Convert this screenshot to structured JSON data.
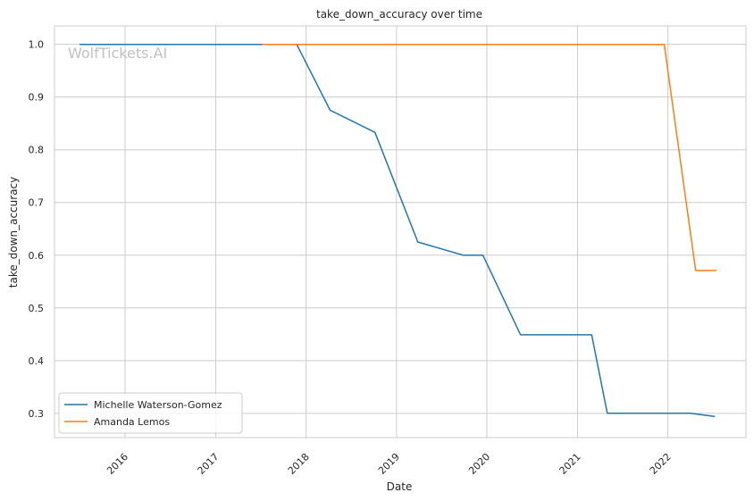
{
  "chart_data": {
    "type": "line",
    "title": "take_down_accuracy over time",
    "xlabel": "Date",
    "ylabel": "take_down_accuracy",
    "watermark": "WolfTickets.AI",
    "x_ticks": [
      "2016",
      "2017",
      "2018",
      "2019",
      "2020",
      "2021",
      "2022"
    ],
    "y_ticks": [
      "0.3",
      "0.4",
      "0.5",
      "0.6",
      "0.7",
      "0.8",
      "0.9",
      "1.0"
    ],
    "xlim": [
      "2015-03-22",
      "2022-11-12"
    ],
    "ylim": [
      0.254,
      1.035
    ],
    "grid": true,
    "legend_position": "lower-left",
    "series": [
      {
        "name": "Michelle Waterson-Gomez",
        "color": "#1f77b4",
        "points": [
          [
            "2015-07-01",
            1.0
          ],
          [
            "2017-11-24",
            1.0
          ],
          [
            "2018-04-08",
            0.875
          ],
          [
            "2018-10-06",
            0.833
          ],
          [
            "2019-03-28",
            0.625
          ],
          [
            "2019-09-28",
            0.6
          ],
          [
            "2019-12-16",
            0.6
          ],
          [
            "2020-05-16",
            0.449
          ],
          [
            "2021-02-27",
            0.449
          ],
          [
            "2021-05-01",
            0.3
          ],
          [
            "2022-04-01",
            0.3
          ],
          [
            "2022-07-10",
            0.294
          ]
        ]
      },
      {
        "name": "Amanda Lemos",
        "color": "#ff7f0e",
        "points": [
          [
            "2017-07-08",
            1.0
          ],
          [
            "2021-12-17",
            1.0
          ],
          [
            "2022-04-23",
            0.571
          ],
          [
            "2022-07-16",
            0.571
          ]
        ]
      }
    ]
  }
}
